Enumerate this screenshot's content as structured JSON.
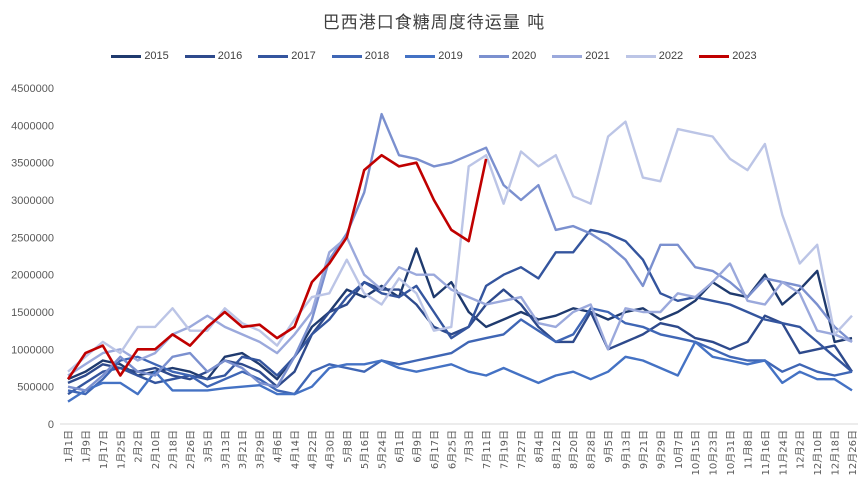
{
  "chart_data": {
    "type": "line",
    "title": "巴西港口食糖周度待运量 吨",
    "xlabel": "",
    "ylabel": "",
    "ylim": [
      0,
      4500000
    ],
    "yticks": [
      0,
      500000,
      1000000,
      1500000,
      2000000,
      2500000,
      3000000,
      3500000,
      4000000,
      4500000
    ],
    "grid": false,
    "legend_position": "top",
    "categories": [
      "1月1日",
      "1月9日",
      "1月17日",
      "1月25日",
      "2月2日",
      "2月10日",
      "2月18日",
      "2月26日",
      "3月5日",
      "3月13日",
      "3月21日",
      "3月29日",
      "4月6日",
      "4月14日",
      "4月22日",
      "4月30日",
      "5月8日",
      "5月16日",
      "5月24日",
      "6月1日",
      "6月9日",
      "6月17日",
      "6月25日",
      "7月3日",
      "7月11日",
      "7月19日",
      "7月27日",
      "8月4日",
      "8月12日",
      "8月20日",
      "8月28日",
      "9月5日",
      "9月13日",
      "9月21日",
      "9月29日",
      "10月7日",
      "10月15日",
      "10月23日",
      "10月31日",
      "11月8日",
      "11月16日",
      "11月24日",
      "12月2日",
      "12月10日",
      "12月18日",
      "12月26日"
    ],
    "series": [
      {
        "name": "2015",
        "color": "#1f3a6e",
        "values": [
          600000,
          700000,
          850000,
          800000,
          650000,
          700000,
          750000,
          700000,
          600000,
          900000,
          950000,
          800000,
          600000,
          900000,
          1300000,
          1500000,
          1800000,
          1700000,
          1850000,
          1700000,
          2350000,
          1700000,
          1900000,
          1500000,
          1300000,
          1400000,
          1500000,
          1400000,
          1450000,
          1550000,
          1500000,
          1400000,
          1500000,
          1550000,
          1400000,
          1500000,
          1650000,
          1900000,
          1750000,
          1700000,
          2000000,
          1600000,
          1800000,
          2050000,
          1100000,
          1150000
        ]
      },
      {
        "name": "2016",
        "color": "#2e4a8c",
        "values": [
          550000,
          650000,
          800000,
          750000,
          700000,
          750000,
          650000,
          600000,
          700000,
          850000,
          800000,
          700000,
          500000,
          700000,
          1200000,
          1500000,
          1600000,
          1900000,
          1800000,
          1800000,
          1600000,
          1300000,
          1200000,
          1300000,
          1600000,
          1800000,
          1600000,
          1300000,
          1100000,
          1100000,
          1500000,
          1000000,
          1100000,
          1200000,
          1350000,
          1300000,
          1150000,
          1100000,
          1000000,
          1100000,
          1450000,
          1350000,
          950000,
          1000000,
          1050000,
          700000
        ]
      },
      {
        "name": "2017",
        "color": "#34559e",
        "values": [
          400000,
          550000,
          700000,
          750000,
          650000,
          550000,
          600000,
          650000,
          600000,
          650000,
          900000,
          850000,
          650000,
          900000,
          1200000,
          1400000,
          1700000,
          1900000,
          1750000,
          1700000,
          1850000,
          1500000,
          1150000,
          1300000,
          1850000,
          2000000,
          2100000,
          1950000,
          2300000,
          2300000,
          2600000,
          2550000,
          2450000,
          2200000,
          1750000,
          1650000,
          1700000,
          1650000,
          1600000,
          1500000,
          1400000,
          1350000,
          1300000,
          1100000,
          900000,
          700000
        ]
      },
      {
        "name": "2018",
        "color": "#3f66b5",
        "values": [
          450000,
          400000,
          600000,
          850000,
          900000,
          800000,
          700000,
          650000,
          500000,
          600000,
          700000,
          600000,
          450000,
          400000,
          700000,
          800000,
          750000,
          700000,
          850000,
          800000,
          850000,
          900000,
          950000,
          1100000,
          1150000,
          1200000,
          1400000,
          1250000,
          1100000,
          1200000,
          1550000,
          1500000,
          1350000,
          1300000,
          1200000,
          1150000,
          1100000,
          1000000,
          900000,
          850000,
          850000,
          700000,
          800000,
          700000,
          650000,
          700000
        ]
      },
      {
        "name": "2019",
        "color": "#4472c4",
        "values": [
          300000,
          450000,
          550000,
          550000,
          400000,
          700000,
          450000,
          450000,
          450000,
          480000,
          500000,
          520000,
          400000,
          400000,
          500000,
          750000,
          800000,
          800000,
          850000,
          750000,
          700000,
          750000,
          800000,
          700000,
          650000,
          750000,
          650000,
          550000,
          650000,
          700000,
          600000,
          700000,
          900000,
          850000,
          750000,
          650000,
          1100000,
          900000,
          850000,
          800000,
          850000,
          550000,
          700000,
          600000,
          600000,
          450000
        ]
      },
      {
        "name": "2020",
        "color": "#7b90cf",
        "values": [
          500000,
          450000,
          650000,
          900000,
          700000,
          650000,
          900000,
          950000,
          700000,
          850000,
          750000,
          550000,
          500000,
          900000,
          1400000,
          2200000,
          2550000,
          3100000,
          4150000,
          3600000,
          3550000,
          3450000,
          3500000,
          3600000,
          3700000,
          3200000,
          3000000,
          3200000,
          2600000,
          2650000,
          2550000,
          2400000,
          2200000,
          1850000,
          2400000,
          2400000,
          2100000,
          2050000,
          1900000,
          1700000,
          1950000,
          1900000,
          1850000,
          1600000,
          1300000,
          1100000
        ]
      },
      {
        "name": "2021",
        "color": "#9ba9dc",
        "values": [
          650000,
          800000,
          950000,
          1000000,
          850000,
          950000,
          1200000,
          1300000,
          1450000,
          1300000,
          1200000,
          1100000,
          950000,
          1200000,
          1500000,
          2300000,
          2500000,
          2000000,
          1800000,
          2100000,
          2000000,
          2000000,
          1800000,
          1700000,
          1600000,
          1650000,
          1700000,
          1350000,
          1300000,
          1500000,
          1600000,
          1000000,
          1550000,
          1500000,
          1500000,
          1750000,
          1700000,
          1900000,
          2150000,
          1650000,
          1600000,
          1900000,
          1750000,
          1250000,
          1200000,
          1100000
        ]
      },
      {
        "name": "2022",
        "color": "#bcc5e6",
        "values": [
          700000,
          900000,
          1100000,
          950000,
          1300000,
          1300000,
          1550000,
          1250000,
          1250000,
          1550000,
          1350000,
          1250000,
          1050000,
          1400000,
          1700000,
          1750000,
          2200000,
          1750000,
          1600000,
          1950000,
          1750000,
          1250000,
          1300000,
          3450000,
          3600000,
          2950000,
          3650000,
          3450000,
          3600000,
          3050000,
          2950000,
          3850000,
          4050000,
          3300000,
          3250000,
          3950000,
          3900000,
          3850000,
          3550000,
          3400000,
          3750000,
          2800000,
          2150000,
          2400000,
          1200000,
          1450000
        ]
      },
      {
        "name": "2023",
        "color": "#c00000",
        "values": [
          600000,
          950000,
          1050000,
          650000,
          1000000,
          1000000,
          1200000,
          1050000,
          1300000,
          1500000,
          1300000,
          1330000,
          1150000,
          1300000,
          1900000,
          2150000,
          2500000,
          3400000,
          3600000,
          3450000,
          3500000,
          3000000,
          2600000,
          2450000,
          3550000,
          null,
          null,
          null,
          null,
          null,
          null,
          null,
          null,
          null,
          null,
          null,
          null,
          null,
          null,
          null,
          null,
          null,
          null,
          null,
          null,
          null
        ]
      }
    ]
  }
}
